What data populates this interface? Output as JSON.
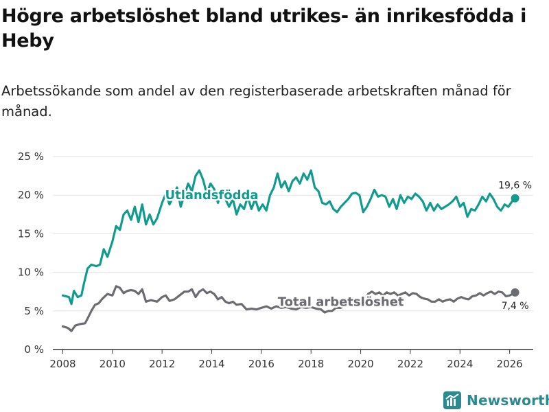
{
  "title": "Högre arbetslöshet bland utrikes- än inrikesfödda i Heby",
  "subtitle": "Arbetssökande som andel av den registerbaserade arbetskraften månad för månad.",
  "brand": "Newsworthy",
  "colors": {
    "foreign": "#0f9b8e",
    "total": "#6b6b72",
    "grid": "#e2e2e2",
    "axis": "#333333",
    "brand": "#2a8a8f"
  },
  "chart_data": {
    "type": "line",
    "title": "Högre arbetslöshet bland utrikes- än inrikesfödda i Heby",
    "xlabel": "",
    "ylabel": "",
    "xlim": [
      2007.6,
      2026.95
    ],
    "ylim": [
      0,
      25
    ],
    "y_ticks": [
      0,
      5,
      10,
      15,
      20,
      25
    ],
    "y_tick_labels": [
      "0 %",
      "5 %",
      "10 %",
      "15 %",
      "20 %",
      "25 %"
    ],
    "x_ticks": [
      2008,
      2010,
      2012,
      2014,
      2016,
      2018,
      2020,
      2022,
      2024,
      2026
    ],
    "x_tick_labels": [
      "2008",
      "2010",
      "2012",
      "2014",
      "2016",
      "2018",
      "2020",
      "2022",
      "2024",
      "2026"
    ],
    "grid": "horizontal",
    "series": [
      {
        "name": "Utlandsfödda",
        "color": "#0f9b8e",
        "end_label": "19,6 %",
        "points": [
          [
            2008.0,
            7.0
          ],
          [
            2008.25,
            6.8
          ],
          [
            2008.35,
            5.9
          ],
          [
            2008.45,
            7.6
          ],
          [
            2008.6,
            6.8
          ],
          [
            2008.75,
            7.0
          ],
          [
            2008.85,
            8.5
          ],
          [
            2009.0,
            10.5
          ],
          [
            2009.15,
            11.0
          ],
          [
            2009.35,
            10.8
          ],
          [
            2009.5,
            11.0
          ],
          [
            2009.65,
            13.0
          ],
          [
            2009.8,
            12.0
          ],
          [
            2010.0,
            14.0
          ],
          [
            2010.15,
            16.0
          ],
          [
            2010.3,
            15.5
          ],
          [
            2010.45,
            17.5
          ],
          [
            2010.6,
            18.0
          ],
          [
            2010.75,
            16.8
          ],
          [
            2010.9,
            18.5
          ],
          [
            2011.05,
            16.5
          ],
          [
            2011.2,
            18.8
          ],
          [
            2011.35,
            16.2
          ],
          [
            2011.5,
            17.5
          ],
          [
            2011.65,
            16.2
          ],
          [
            2011.8,
            17.0
          ],
          [
            2012.0,
            19.0
          ],
          [
            2012.15,
            20.2
          ],
          [
            2012.3,
            18.8
          ],
          [
            2012.45,
            19.8
          ],
          [
            2012.6,
            21.0
          ],
          [
            2012.75,
            18.5
          ],
          [
            2012.9,
            20.0
          ],
          [
            2013.05,
            21.5
          ],
          [
            2013.2,
            20.5
          ],
          [
            2013.35,
            22.5
          ],
          [
            2013.5,
            23.2
          ],
          [
            2013.65,
            22.0
          ],
          [
            2013.8,
            20.2
          ],
          [
            2013.95,
            21.5
          ],
          [
            2014.1,
            20.8
          ],
          [
            2014.25,
            19.0
          ],
          [
            2014.4,
            20.5
          ],
          [
            2014.55,
            19.5
          ],
          [
            2014.7,
            18.5
          ],
          [
            2014.85,
            19.5
          ],
          [
            2015.0,
            17.5
          ],
          [
            2015.15,
            18.8
          ],
          [
            2015.3,
            18.2
          ],
          [
            2015.45,
            19.8
          ],
          [
            2015.6,
            18.2
          ],
          [
            2015.75,
            19.5
          ],
          [
            2015.9,
            18.0
          ],
          [
            2016.05,
            18.8
          ],
          [
            2016.2,
            18.0
          ],
          [
            2016.35,
            20.0
          ],
          [
            2016.5,
            21.0
          ],
          [
            2016.65,
            22.8
          ],
          [
            2016.8,
            21.0
          ],
          [
            2016.95,
            21.8
          ],
          [
            2017.1,
            20.5
          ],
          [
            2017.25,
            21.8
          ],
          [
            2017.4,
            22.3
          ],
          [
            2017.55,
            21.5
          ],
          [
            2017.7,
            22.8
          ],
          [
            2017.85,
            22.0
          ],
          [
            2018.0,
            23.2
          ],
          [
            2018.15,
            21.0
          ],
          [
            2018.3,
            20.5
          ],
          [
            2018.45,
            19.0
          ],
          [
            2018.6,
            18.8
          ],
          [
            2018.75,
            19.2
          ],
          [
            2018.9,
            18.2
          ],
          [
            2019.05,
            17.8
          ],
          [
            2019.2,
            18.5
          ],
          [
            2019.35,
            19.0
          ],
          [
            2019.5,
            19.5
          ],
          [
            2019.65,
            20.2
          ],
          [
            2019.8,
            20.3
          ],
          [
            2019.95,
            20.0
          ],
          [
            2020.1,
            17.8
          ],
          [
            2020.25,
            18.5
          ],
          [
            2020.4,
            19.5
          ],
          [
            2020.55,
            20.7
          ],
          [
            2020.7,
            19.8
          ],
          [
            2020.85,
            20.0
          ],
          [
            2021.0,
            19.8
          ],
          [
            2021.15,
            18.5
          ],
          [
            2021.3,
            19.5
          ],
          [
            2021.45,
            18.2
          ],
          [
            2021.6,
            20.0
          ],
          [
            2021.75,
            19.0
          ],
          [
            2021.9,
            19.8
          ],
          [
            2022.05,
            19.5
          ],
          [
            2022.2,
            20.2
          ],
          [
            2022.35,
            19.8
          ],
          [
            2022.5,
            19.2
          ],
          [
            2022.65,
            18.0
          ],
          [
            2022.8,
            19.0
          ],
          [
            2022.95,
            18.0
          ],
          [
            2023.1,
            18.8
          ],
          [
            2023.25,
            18.2
          ],
          [
            2023.4,
            18.5
          ],
          [
            2023.55,
            18.8
          ],
          [
            2023.7,
            19.2
          ],
          [
            2023.85,
            19.8
          ],
          [
            2024.0,
            18.5
          ],
          [
            2024.15,
            19.0
          ],
          [
            2024.3,
            17.2
          ],
          [
            2024.45,
            18.2
          ],
          [
            2024.6,
            18.0
          ],
          [
            2024.75,
            18.8
          ],
          [
            2024.9,
            19.8
          ],
          [
            2025.05,
            19.2
          ],
          [
            2025.2,
            20.2
          ],
          [
            2025.35,
            19.5
          ],
          [
            2025.5,
            18.5
          ],
          [
            2025.65,
            18.0
          ],
          [
            2025.8,
            18.8
          ],
          [
            2025.95,
            18.5
          ],
          [
            2026.1,
            19.2
          ],
          [
            2026.22,
            19.6
          ]
        ]
      },
      {
        "name": "Total arbetslöshet",
        "color": "#6b6b72",
        "end_label": "7,4 %",
        "points": [
          [
            2008.0,
            3.0
          ],
          [
            2008.2,
            2.8
          ],
          [
            2008.35,
            2.4
          ],
          [
            2008.5,
            3.1
          ],
          [
            2008.7,
            3.3
          ],
          [
            2008.9,
            3.4
          ],
          [
            2009.0,
            4.0
          ],
          [
            2009.15,
            5.0
          ],
          [
            2009.3,
            5.8
          ],
          [
            2009.45,
            6.0
          ],
          [
            2009.6,
            6.6
          ],
          [
            2009.8,
            7.2
          ],
          [
            2010.0,
            7.0
          ],
          [
            2010.15,
            8.2
          ],
          [
            2010.3,
            8.0
          ],
          [
            2010.45,
            7.3
          ],
          [
            2010.6,
            7.6
          ],
          [
            2010.75,
            7.7
          ],
          [
            2010.9,
            7.6
          ],
          [
            2011.05,
            7.2
          ],
          [
            2011.2,
            7.8
          ],
          [
            2011.35,
            6.2
          ],
          [
            2011.55,
            6.4
          ],
          [
            2011.8,
            6.2
          ],
          [
            2012.0,
            6.8
          ],
          [
            2012.15,
            7.0
          ],
          [
            2012.3,
            6.3
          ],
          [
            2012.5,
            6.5
          ],
          [
            2012.7,
            7.0
          ],
          [
            2012.9,
            7.5
          ],
          [
            2013.05,
            7.5
          ],
          [
            2013.2,
            7.8
          ],
          [
            2013.35,
            6.8
          ],
          [
            2013.5,
            7.5
          ],
          [
            2013.65,
            7.8
          ],
          [
            2013.8,
            7.3
          ],
          [
            2013.95,
            7.5
          ],
          [
            2014.1,
            7.2
          ],
          [
            2014.25,
            6.5
          ],
          [
            2014.4,
            6.8
          ],
          [
            2014.55,
            6.2
          ],
          [
            2014.7,
            6.0
          ],
          [
            2014.85,
            6.2
          ],
          [
            2015.0,
            5.8
          ],
          [
            2015.2,
            5.9
          ],
          [
            2015.4,
            5.2
          ],
          [
            2015.6,
            5.3
          ],
          [
            2015.8,
            5.2
          ],
          [
            2016.0,
            5.4
          ],
          [
            2016.2,
            5.6
          ],
          [
            2016.4,
            5.3
          ],
          [
            2016.6,
            5.6
          ],
          [
            2016.8,
            5.4
          ],
          [
            2017.0,
            5.5
          ],
          [
            2017.2,
            5.3
          ],
          [
            2017.4,
            5.2
          ],
          [
            2017.6,
            5.5
          ],
          [
            2017.8,
            5.4
          ],
          [
            2018.0,
            5.5
          ],
          [
            2018.2,
            5.3
          ],
          [
            2018.4,
            5.2
          ],
          [
            2018.55,
            4.8
          ],
          [
            2018.7,
            5.0
          ],
          [
            2018.85,
            5.0
          ],
          [
            2019.0,
            5.4
          ],
          [
            2019.2,
            5.4
          ],
          [
            2019.4,
            5.8
          ],
          [
            2019.6,
            6.0
          ],
          [
            2019.8,
            6.1
          ],
          [
            2020.0,
            6.2
          ],
          [
            2020.15,
            6.5
          ],
          [
            2020.3,
            7.2
          ],
          [
            2020.45,
            7.5
          ],
          [
            2020.6,
            7.2
          ],
          [
            2020.75,
            7.4
          ],
          [
            2020.9,
            7.0
          ],
          [
            2021.05,
            7.4
          ],
          [
            2021.2,
            7.2
          ],
          [
            2021.35,
            7.4
          ],
          [
            2021.5,
            7.0
          ],
          [
            2021.65,
            7.2
          ],
          [
            2021.8,
            7.4
          ],
          [
            2021.95,
            7.0
          ],
          [
            2022.1,
            7.3
          ],
          [
            2022.25,
            7.2
          ],
          [
            2022.4,
            6.8
          ],
          [
            2022.55,
            6.6
          ],
          [
            2022.7,
            6.5
          ],
          [
            2022.85,
            6.2
          ],
          [
            2023.0,
            6.2
          ],
          [
            2023.15,
            6.5
          ],
          [
            2023.3,
            6.2
          ],
          [
            2023.45,
            6.4
          ],
          [
            2023.6,
            6.5
          ],
          [
            2023.75,
            6.2
          ],
          [
            2023.9,
            6.6
          ],
          [
            2024.05,
            6.8
          ],
          [
            2024.2,
            6.6
          ],
          [
            2024.35,
            6.5
          ],
          [
            2024.5,
            6.9
          ],
          [
            2024.65,
            7.0
          ],
          [
            2024.8,
            7.3
          ],
          [
            2024.95,
            7.0
          ],
          [
            2025.1,
            7.3
          ],
          [
            2025.25,
            7.5
          ],
          [
            2025.4,
            7.2
          ],
          [
            2025.55,
            7.5
          ],
          [
            2025.7,
            7.4
          ],
          [
            2025.85,
            6.9
          ],
          [
            2026.0,
            7.0
          ],
          [
            2026.12,
            7.2
          ],
          [
            2026.22,
            7.4
          ]
        ]
      }
    ],
    "series_label_anchor": [
      {
        "series": "Utlandsfödda",
        "x": 2014.0,
        "y": 20.0
      },
      {
        "series": "Total arbetslöshet",
        "x": 2019.2,
        "y": 6.2
      }
    ]
  }
}
